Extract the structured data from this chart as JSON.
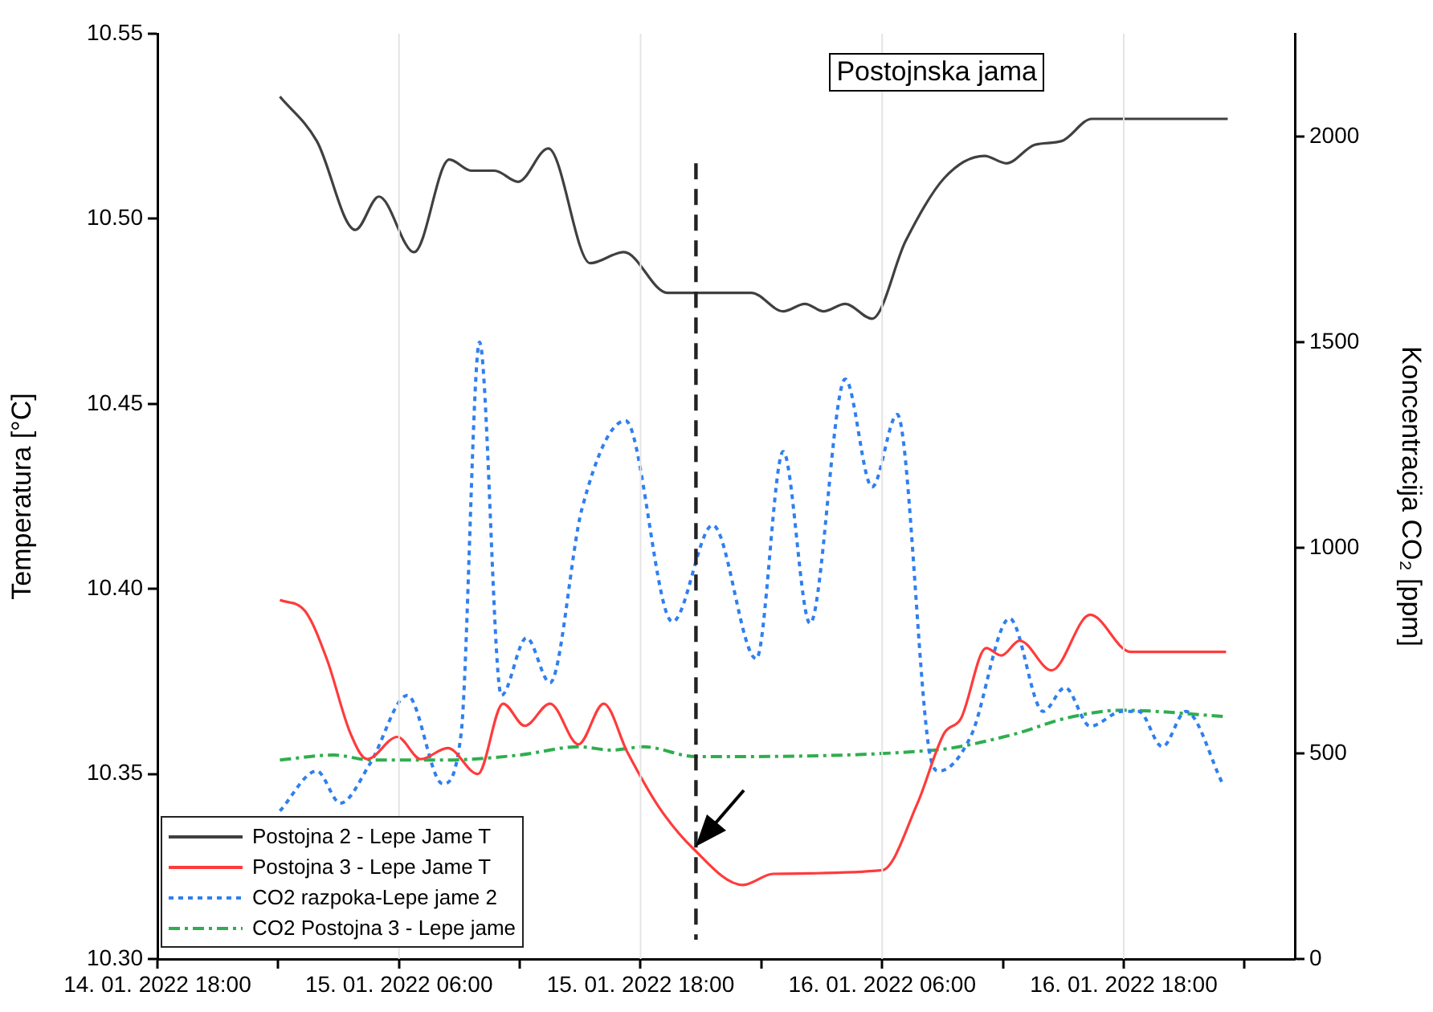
{
  "chart_data": {
    "type": "line",
    "title": "Postojnska jama",
    "ylabel": "Temperatura [°C]",
    "y2label": "Koncentracija CO₂ [ppm]",
    "xlim": [
      "2022-01-14T18:00",
      "2022-01-17T02:30"
    ],
    "xticks": [
      {
        "value": "2022-01-14T18:00",
        "label": "14. 01. 2022 18:00"
      },
      {
        "value": "2022-01-15T00:00",
        "label": null
      },
      {
        "value": "2022-01-15T06:00",
        "label": "15. 01. 2022 06:00"
      },
      {
        "value": "2022-01-15T12:00",
        "label": null
      },
      {
        "value": "2022-01-15T18:00",
        "label": "15. 01. 2022 18:00"
      },
      {
        "value": "2022-01-16T00:00",
        "label": null
      },
      {
        "value": "2022-01-16T06:00",
        "label": "16. 01. 2022 06:00"
      },
      {
        "value": "2022-01-16T12:00",
        "label": null
      },
      {
        "value": "2022-01-16T18:00",
        "label": "16. 01. 2022 18:00"
      },
      {
        "value": "2022-01-17T00:00",
        "label": null
      }
    ],
    "ylim": [
      10.3,
      10.55
    ],
    "yticks": [
      {
        "value": 10.3,
        "label": "10.30"
      },
      {
        "value": 10.35,
        "label": "10.35"
      },
      {
        "value": 10.4,
        "label": "10.40"
      },
      {
        "value": 10.45,
        "label": "10.45"
      },
      {
        "value": 10.5,
        "label": "10.50"
      },
      {
        "value": 10.55,
        "label": "10.55"
      }
    ],
    "y2lim": [
      0,
      2250
    ],
    "y2ticks": [
      0,
      500,
      1000,
      1500,
      2000
    ],
    "grid": "x",
    "legend": "bottom left",
    "ref_lines": [
      {
        "axis": "x",
        "value": "2022-01-15T20:45",
        "color": "#222222",
        "line_style": "dashed"
      }
    ],
    "series": [
      {
        "name": "Postojna 2 - Lepe Jame T",
        "color": "#404040",
        "line_style": "solid",
        "x": [
          "2022-01-15T00:05",
          "2022-01-15T01:55",
          "2022-01-15T03:50",
          "2022-01-15T05:00",
          "2022-01-15T06:45",
          "2022-01-15T08:30",
          "2022-01-15T09:35",
          "2022-01-15T10:45",
          "2022-01-15T11:55",
          "2022-01-15T13:25",
          "2022-01-15T15:30",
          "2022-01-15T17:10",
          "2022-01-15T19:20",
          "2022-01-15T23:30",
          "2022-01-16T01:05",
          "2022-01-16T02:10",
          "2022-01-16T03:05",
          "2022-01-16T04:10",
          "2022-01-16T05:30",
          "2022-01-16T07:10",
          "2022-01-16T09:05",
          "2022-01-16T11:05",
          "2022-01-16T12:10",
          "2022-01-16T13:35",
          "2022-01-16T14:55",
          "2022-01-16T16:25",
          "2022-01-16T23:10"
        ],
        "values": [
          10.533,
          10.521,
          10.497,
          10.506,
          10.491,
          10.516,
          10.513,
          10.513,
          10.51,
          10.519,
          10.488,
          10.491,
          10.48,
          10.48,
          10.475,
          10.477,
          10.475,
          10.477,
          10.473,
          10.494,
          10.511,
          10.517,
          10.515,
          10.52,
          10.521,
          10.527,
          10.527
        ]
      },
      {
        "name": "Postojna 3 - Lepe Jame T",
        "color": "#ff3b3b",
        "line_style": "solid",
        "x": [
          "2022-01-15T00:05",
          "2022-01-15T01:20",
          "2022-01-15T02:25",
          "2022-01-15T03:35",
          "2022-01-15T04:25",
          "2022-01-15T05:55",
          "2022-01-15T07:05",
          "2022-01-15T08:25",
          "2022-01-15T09:55",
          "2022-01-15T11:10",
          "2022-01-15T12:15",
          "2022-01-15T13:30",
          "2022-01-15T14:55",
          "2022-01-15T16:10",
          "2022-01-15T17:20",
          "2022-01-15T18:55",
          "2022-01-15T20:35",
          "2022-01-15T23:05",
          "2022-01-16T00:35",
          "2022-01-16T06:00",
          "2022-01-16T07:45",
          "2022-01-16T09:05",
          "2022-01-16T09:55",
          "2022-01-16T11:10",
          "2022-01-16T11:55",
          "2022-01-16T12:50",
          "2022-01-16T14:25",
          "2022-01-16T16:20",
          "2022-01-16T18:20",
          "2022-01-16T23:05"
        ],
        "values": [
          10.397,
          10.394,
          10.381,
          10.361,
          10.354,
          10.36,
          10.354,
          10.357,
          10.35,
          10.369,
          10.363,
          10.369,
          10.358,
          10.369,
          10.356,
          10.341,
          10.33,
          10.32,
          10.323,
          10.324,
          10.342,
          10.361,
          10.365,
          10.384,
          10.382,
          10.386,
          10.378,
          10.393,
          10.383,
          10.383
        ]
      },
      {
        "name": "CO2 razpoka-Lepe jame 2",
        "color": "#2f7fef",
        "line_style": "dotted",
        "axis": "y2",
        "x": [
          "2022-01-15T00:05",
          "2022-01-15T01:55",
          "2022-01-15T03:05",
          "2022-01-15T04:35",
          "2022-01-15T06:25",
          "2022-01-15T08:10",
          "2022-01-15T09:05",
          "2022-01-15T10:00",
          "2022-01-15T11:05",
          "2022-01-15T12:20",
          "2022-01-15T13:30",
          "2022-01-15T15:05",
          "2022-01-15T17:15",
          "2022-01-15T19:35",
          "2022-01-15T21:35",
          "2022-01-15T23:45",
          "2022-01-16T01:05",
          "2022-01-16T02:25",
          "2022-01-16T04:10",
          "2022-01-16T05:30",
          "2022-01-16T06:45",
          "2022-01-16T08:20",
          "2022-01-16T08:50",
          "2022-01-16T10:25",
          "2022-01-16T12:20",
          "2022-01-16T14:00",
          "2022-01-16T15:05",
          "2022-01-16T16:20",
          "2022-01-16T17:55",
          "2022-01-16T18:45",
          "2022-01-16T19:55",
          "2022-01-16T21:05",
          "2022-01-16T22:55"
        ],
        "values": [
          360,
          457,
          379,
          477,
          641,
          426,
          547,
          1500,
          641,
          781,
          672,
          1094,
          1309,
          820,
          1055,
          730,
          1234,
          816,
          1410,
          1148,
          1324,
          508,
          457,
          543,
          828,
          602,
          660,
          566,
          602,
          602,
          516,
          602,
          426
        ]
      },
      {
        "name": "CO2 Postojna 3 - Lepe jame",
        "color": "#2fae4f",
        "line_style": "dashed",
        "axis": "y2",
        "x": [
          "2022-01-15T00:05",
          "2022-01-15T02:45",
          "2022-01-15T04:35",
          "2022-01-15T08:20",
          "2022-01-15T12:00",
          "2022-01-15T14:55",
          "2022-01-15T16:35",
          "2022-01-15T18:10",
          "2022-01-15T20:45",
          "2022-01-16T08:35",
          "2022-01-16T12:35",
          "2022-01-16T15:10",
          "2022-01-16T17:55",
          "2022-01-16T22:55"
        ],
        "values": [
          484,
          496,
          484,
          484,
          496,
          516,
          508,
          516,
          492,
          508,
          547,
          586,
          605,
          590
        ]
      }
    ]
  }
}
